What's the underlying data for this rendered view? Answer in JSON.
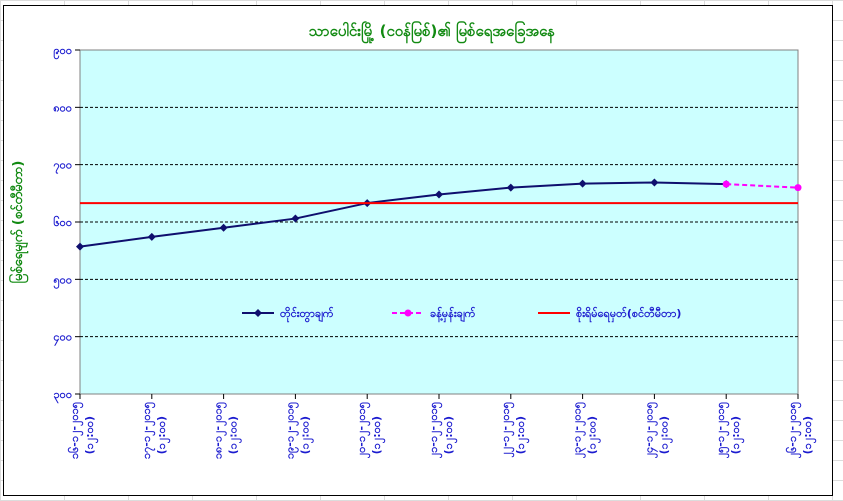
{
  "chart_data": {
    "type": "line",
    "title": "သာပေါင်းမြို့ (ငဝန်မြစ်)၏ မြစ်ရေအခြေအနေ",
    "ylabel": "မြစ်ရေမျက် (စင်တီမီတာ)",
    "xlabel": "",
    "ylim": [
      800,
      1400
    ],
    "y_reversed": true,
    "y_ticks": [
      800,
      900,
      1000,
      1100,
      1200,
      1300,
      1400
    ],
    "y_tick_labels": [
      "၉၀၀",
      "၈၀၀",
      "၇၀၀",
      "၆၀၀",
      "၅၀၀",
      "၄၀၀",
      "၃၀၀"
    ],
    "categories": [
      [
        "၁၆-၁၂-၂၀၁၅",
        "(၁၂:၀၀)"
      ],
      [
        "၁၇-၁၂-၂၀၁၅",
        "(၁၂:၀၀)"
      ],
      [
        "၁၈-၁၂-၂၀၁၅",
        "(၁၂:၀၀)"
      ],
      [
        "၁၉-၁၂-၂၀၁၅",
        "(၁၂:၀၀)"
      ],
      [
        "၂၀-၁၂-၂၀၁၅",
        "(၁၂:၀၀)"
      ],
      [
        "၂၁-၁၂-၂၀၁၅",
        "(၁၂:၀၀)"
      ],
      [
        "၂၂-၁၂-၂၀၁၅",
        "(၁၂:၀၀)"
      ],
      [
        "၂၃-၁၂-၂၀၁၅",
        "(၁၂:၀၀)"
      ],
      [
        "၂၄-၁၂-၂၀၁၅",
        "(၁၂:၀၀)"
      ],
      [
        "၂၅-၁၂-၂၀၁၅",
        "(၁၂:၀၀)"
      ],
      [
        "၂၆-၁၂-၂၀၁၅",
        "(၁၂:၀၀)"
      ]
    ],
    "series": [
      {
        "name": "တိုင်းတွာချက်",
        "color": "#0f0f6e",
        "style": "solid",
        "marker": "diamond",
        "values": [
          1143,
          1126,
          1110,
          1094,
          1067,
          1052,
          1040,
          1033,
          1031,
          1034,
          null
        ]
      },
      {
        "name": "ခန့်မှန်းချက်",
        "color": "#ff00ff",
        "style": "dashed",
        "marker": "circle",
        "values": [
          null,
          null,
          null,
          null,
          null,
          null,
          null,
          null,
          null,
          1034,
          1040
        ]
      },
      {
        "name": "စိုးရိမ်ရေမှတ်(စင်တီမီတာ)",
        "color": "#ff0000",
        "style": "solid",
        "marker": "none",
        "constant": 1067
      }
    ],
    "grid": "horizontal-dashed",
    "legend_position": "inside-bottom",
    "plot_bg": "#ccffff"
  }
}
